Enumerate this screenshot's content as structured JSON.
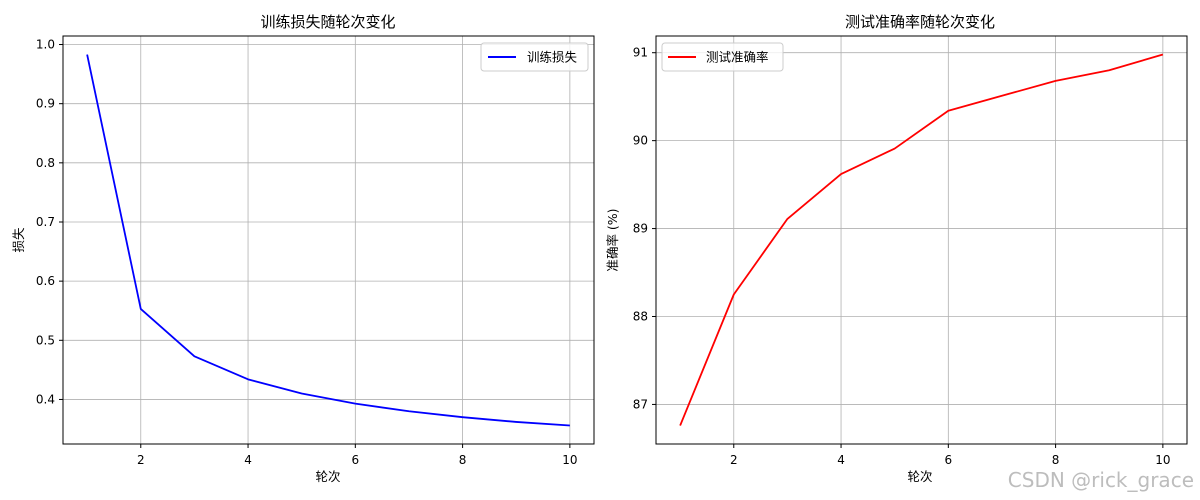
{
  "chart_data": [
    {
      "type": "line",
      "title": "训练损失随轮次变化",
      "xlabel": "轮次",
      "ylabel": "损失",
      "x": [
        1,
        2,
        3,
        4,
        5,
        6,
        7,
        8,
        9,
        10
      ],
      "series": [
        {
          "name": "训练损失",
          "color": "#0000ff",
          "values": [
            0.983,
            0.553,
            0.473,
            0.434,
            0.41,
            0.393,
            0.38,
            0.37,
            0.362,
            0.356
          ]
        }
      ],
      "xlim": [
        0.55,
        10.45
      ],
      "ylim": [
        0.3247,
        1.0144
      ],
      "xticks": [
        2,
        4,
        6,
        8,
        10
      ],
      "yticks": [
        0.4,
        0.5,
        0.6,
        0.7,
        0.8,
        0.9,
        1.0
      ],
      "ytick_labels": [
        "0.4",
        "0.5",
        "0.6",
        "0.7",
        "0.8",
        "0.9",
        "1.0"
      ],
      "grid": true,
      "legend": "top-right"
    },
    {
      "type": "line",
      "title": "测试准确率随轮次变化",
      "xlabel": "轮次",
      "ylabel": "准确率 (%)",
      "x": [
        1,
        2,
        3,
        4,
        5,
        6,
        7,
        8,
        9,
        10
      ],
      "series": [
        {
          "name": "测试准确率",
          "color": "#ff0000",
          "values": [
            86.76,
            88.25,
            89.11,
            89.62,
            89.91,
            90.34,
            90.51,
            90.68,
            90.8,
            90.98
          ]
        }
      ],
      "xlim": [
        0.55,
        10.45
      ],
      "ylim": [
        86.55,
        91.19
      ],
      "xticks": [
        2,
        4,
        6,
        8,
        10
      ],
      "yticks": [
        87,
        88,
        89,
        90,
        91
      ],
      "ytick_labels": [
        "87",
        "88",
        "89",
        "90",
        "91"
      ],
      "grid": true,
      "legend": "top-left"
    }
  ],
  "watermark": "CSDN @rick_grace"
}
